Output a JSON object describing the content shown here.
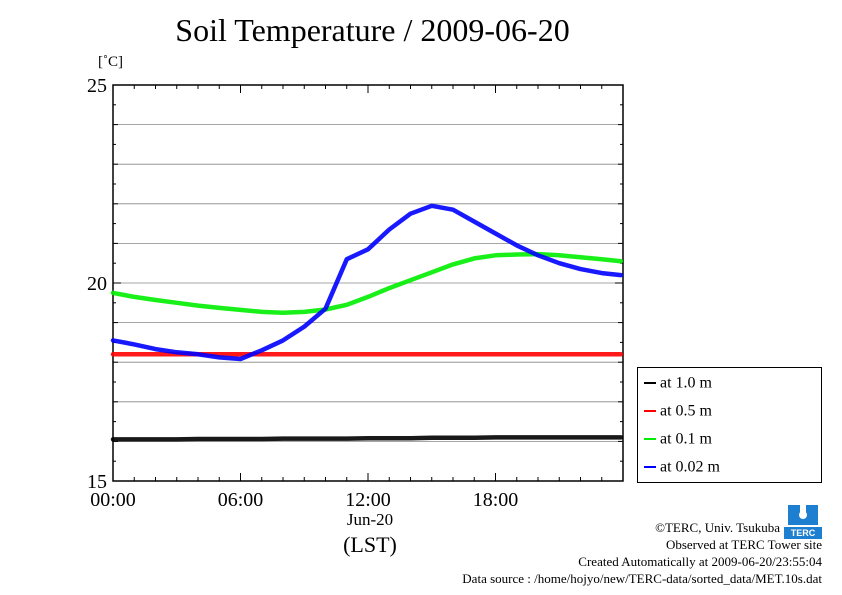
{
  "title": "Soil Temperature / 2009-06-20",
  "unit": "[˚C]",
  "x_date_label": "Jun-20",
  "x_tz_label": "(LST)",
  "footer": {
    "copyright": "©TERC, Univ. Tsukuba",
    "observed": "Observed at TERC Tower site",
    "created": "Created Automatically at 2009-06-20/23:55:04",
    "source": "Data source : /home/hojyo/new/TERC-data/sorted_data/MET.10s.dat"
  },
  "logo_text": "TERC",
  "chart_data": {
    "type": "line",
    "title": "Soil Temperature / 2009-06-20",
    "xlabel": "(LST)",
    "ylabel": "[˚C]",
    "xlim": [
      0,
      24
    ],
    "ylim": [
      15,
      25
    ],
    "x_ticks": [
      0,
      6,
      12,
      18
    ],
    "x_tick_labels": [
      "00:00",
      "06:00",
      "12:00",
      "18:00"
    ],
    "y_ticks": [
      15,
      20,
      25
    ],
    "y_tick_labels": [
      "15",
      "20",
      "25"
    ],
    "grid": true,
    "legend_position": "right",
    "x": [
      0,
      1,
      2,
      3,
      4,
      5,
      6,
      7,
      8,
      9,
      10,
      11,
      12,
      13,
      14,
      15,
      16,
      17,
      18,
      19,
      20,
      21,
      22,
      23,
      23.9
    ],
    "series": [
      {
        "name": "at 1.0 m",
        "color": "#000000",
        "values": [
          16.05,
          16.05,
          16.05,
          16.05,
          16.06,
          16.06,
          16.06,
          16.06,
          16.07,
          16.07,
          16.07,
          16.07,
          16.08,
          16.08,
          16.08,
          16.09,
          16.09,
          16.09,
          16.1,
          16.1,
          16.1,
          16.1,
          16.1,
          16.1,
          16.1
        ]
      },
      {
        "name": "at 0.5 m",
        "color": "#ff0000",
        "values": [
          18.2,
          18.2,
          18.2,
          18.2,
          18.2,
          18.2,
          18.2,
          18.2,
          18.2,
          18.2,
          18.2,
          18.2,
          18.2,
          18.2,
          18.2,
          18.2,
          18.2,
          18.2,
          18.2,
          18.2,
          18.2,
          18.2,
          18.2,
          18.2,
          18.2
        ]
      },
      {
        "name": "at 0.1 m",
        "color": "#00ee00",
        "values": [
          19.75,
          19.65,
          19.57,
          19.5,
          19.43,
          19.37,
          19.32,
          19.27,
          19.25,
          19.27,
          19.33,
          19.45,
          19.65,
          19.87,
          20.07,
          20.27,
          20.47,
          20.62,
          20.7,
          20.72,
          20.73,
          20.7,
          20.65,
          20.6,
          20.55
        ]
      },
      {
        "name": "at 0.02 m",
        "color": "#0000ff",
        "values": [
          18.55,
          18.45,
          18.33,
          18.25,
          18.2,
          18.12,
          18.08,
          18.3,
          18.55,
          18.9,
          19.35,
          20.6,
          20.85,
          21.35,
          21.75,
          21.95,
          21.85,
          21.55,
          21.25,
          20.95,
          20.7,
          20.5,
          20.35,
          20.25,
          20.2
        ]
      }
    ]
  }
}
